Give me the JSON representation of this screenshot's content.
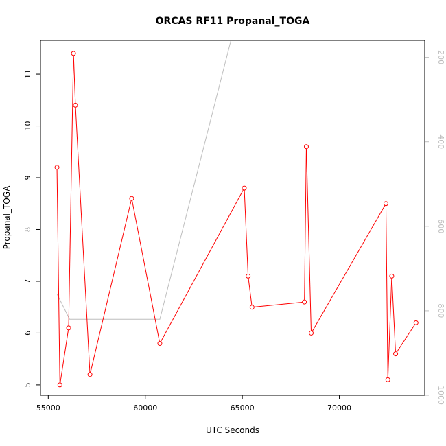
{
  "chart_data": {
    "type": "line",
    "title": "ORCAS RF11 Propanal_TOGA",
    "xlabel": "UTC Seconds",
    "ylabel": "Propanal_TOGA",
    "xlim": [
      54600,
      74400
    ],
    "ylim": [
      4.8,
      11.65
    ],
    "x_ticks": [
      55000,
      60000,
      65000,
      70000
    ],
    "x_tick_labels": [
      "55000",
      "60000",
      "65000",
      "70000"
    ],
    "y_ticks": [
      5,
      6,
      7,
      8,
      9,
      10,
      11
    ],
    "y_tick_labels": [
      "5",
      "6",
      "7",
      "8",
      "9",
      "10",
      "11"
    ],
    "grid": false,
    "series": [
      {
        "color": "#ff0000",
        "marker": "open-circle",
        "x": [
          55450,
          55600,
          56050,
          56300,
          56400,
          57150,
          59300,
          60750,
          65100,
          65300,
          65500,
          68200,
          68300,
          68550,
          72400,
          72500,
          72700,
          72900,
          73950
        ],
        "y": [
          9.2,
          5.0,
          6.1,
          11.4,
          10.4,
          5.2,
          8.6,
          5.8,
          8.8,
          7.1,
          6.5,
          6.6,
          9.6,
          6.0,
          8.5,
          5.1,
          7.1,
          5.6,
          6.2
        ]
      }
    ],
    "secondary_axis": {
      "position": "right",
      "color": "#bdbdbd",
      "ylim": [
        1000,
        160
      ],
      "ticks": [
        200,
        400,
        600,
        800,
        1000
      ],
      "tick_labels": [
        "200",
        "400",
        "600",
        "800",
        "1000"
      ],
      "series": {
        "color": "#bdbdbd",
        "x": [
          55450,
          56100,
          60750,
          65300
        ],
        "y": [
          760,
          820,
          820,
          0
        ]
      }
    }
  }
}
